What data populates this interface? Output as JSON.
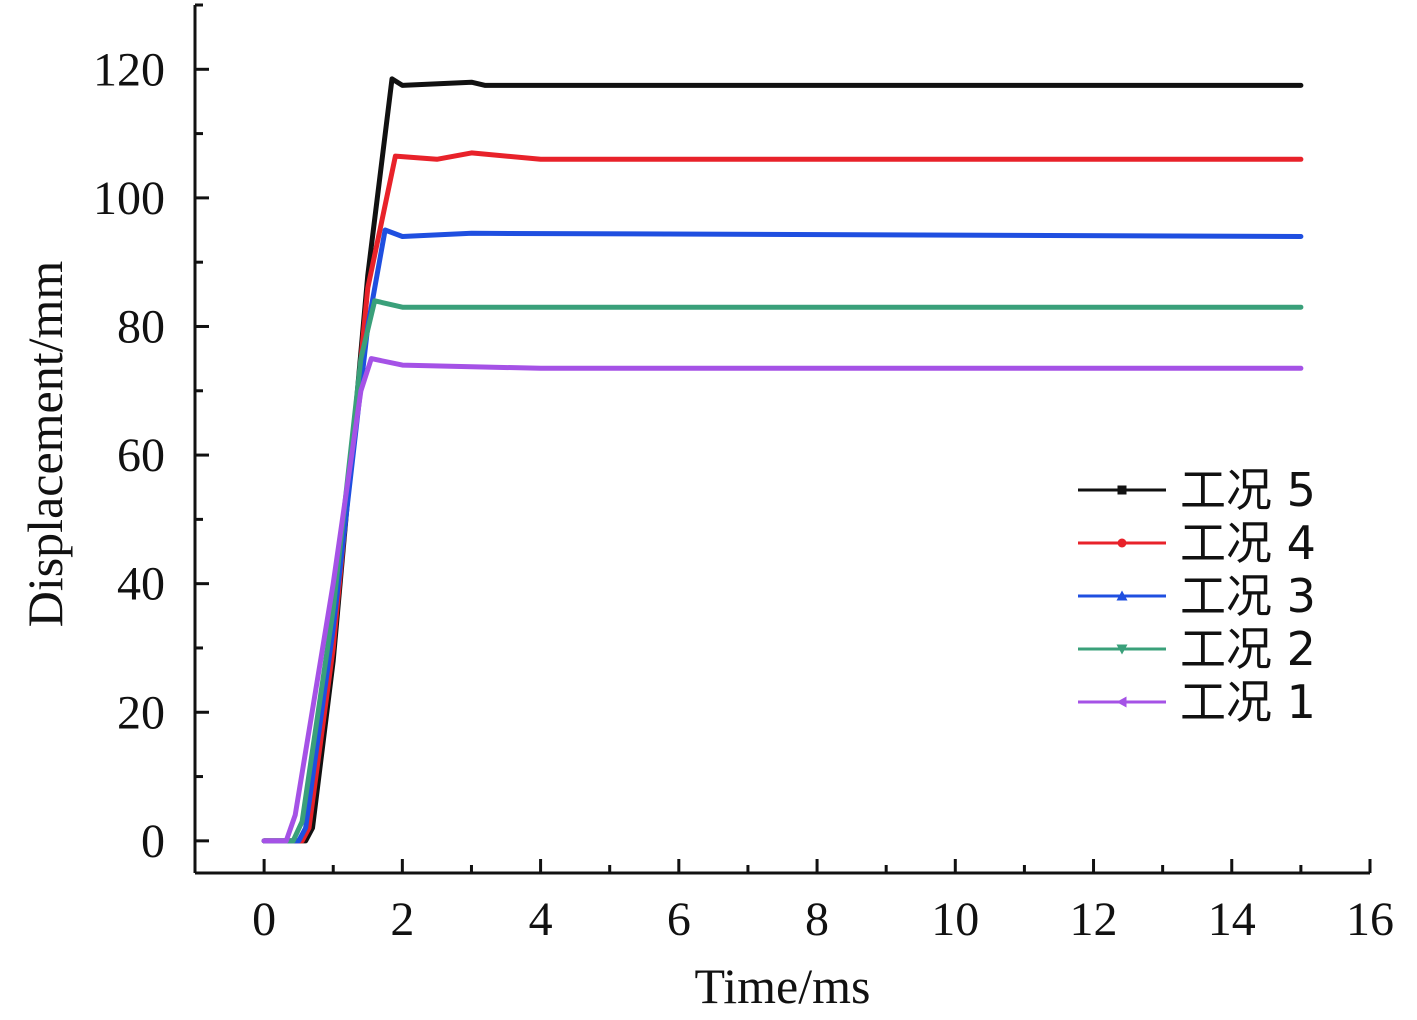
{
  "chart_data": {
    "type": "line",
    "title": "",
    "xlabel": "Time/ms",
    "ylabel": "Displacement/mm",
    "xlim": [
      -1,
      16
    ],
    "ylim": [
      -5,
      130
    ],
    "xticks": [
      0,
      2,
      4,
      6,
      8,
      10,
      12,
      14,
      16
    ],
    "yticks": [
      0,
      20,
      40,
      60,
      80,
      100,
      120
    ],
    "x_tick_labels": [
      "0",
      "2",
      "4",
      "6",
      "8",
      "10",
      "12",
      "14",
      "16"
    ],
    "y_tick_labels": [
      "0",
      "20",
      "40",
      "60",
      "80",
      "100",
      "120"
    ],
    "grid": false,
    "legend_position": "right",
    "series": [
      {
        "name": "工况 5",
        "color": "#111111",
        "marker": "square",
        "points": [
          [
            0,
            0
          ],
          [
            0.6,
            0
          ],
          [
            0.7,
            2
          ],
          [
            1.0,
            28
          ],
          [
            1.5,
            88
          ],
          [
            1.85,
            118.5
          ],
          [
            2.0,
            117.5
          ],
          [
            3.0,
            118
          ],
          [
            3.2,
            117.5
          ],
          [
            15,
            117.5
          ]
        ]
      },
      {
        "name": "工况 4",
        "color": "#e8222a",
        "marker": "circle",
        "points": [
          [
            0,
            0
          ],
          [
            0.55,
            0
          ],
          [
            0.65,
            2
          ],
          [
            1.0,
            30
          ],
          [
            1.5,
            86
          ],
          [
            1.9,
            106.5
          ],
          [
            2.5,
            106
          ],
          [
            3.0,
            107
          ],
          [
            4.0,
            106
          ],
          [
            15,
            106
          ]
        ]
      },
      {
        "name": "工况 3",
        "color": "#1f4fe0",
        "marker": "triangle-up",
        "points": [
          [
            0,
            0
          ],
          [
            0.5,
            0
          ],
          [
            0.6,
            2
          ],
          [
            1.0,
            33
          ],
          [
            1.5,
            80
          ],
          [
            1.75,
            95
          ],
          [
            2.0,
            94
          ],
          [
            3.0,
            94.5
          ],
          [
            15,
            94
          ]
        ]
      },
      {
        "name": "工况 2",
        "color": "#3aa07a",
        "marker": "triangle-down",
        "points": [
          [
            0,
            0
          ],
          [
            0.42,
            0
          ],
          [
            0.55,
            3
          ],
          [
            1.0,
            36
          ],
          [
            1.4,
            75
          ],
          [
            1.6,
            84
          ],
          [
            2.0,
            83
          ],
          [
            3.0,
            83
          ],
          [
            15,
            83
          ]
        ]
      },
      {
        "name": "工况 1",
        "color": "#a552e6",
        "marker": "triangle-left",
        "points": [
          [
            0,
            0
          ],
          [
            0.32,
            0
          ],
          [
            0.45,
            4
          ],
          [
            1.0,
            40
          ],
          [
            1.4,
            70
          ],
          [
            1.55,
            75
          ],
          [
            2.0,
            74
          ],
          [
            4.0,
            73.5
          ],
          [
            15,
            73.5
          ]
        ]
      }
    ]
  }
}
